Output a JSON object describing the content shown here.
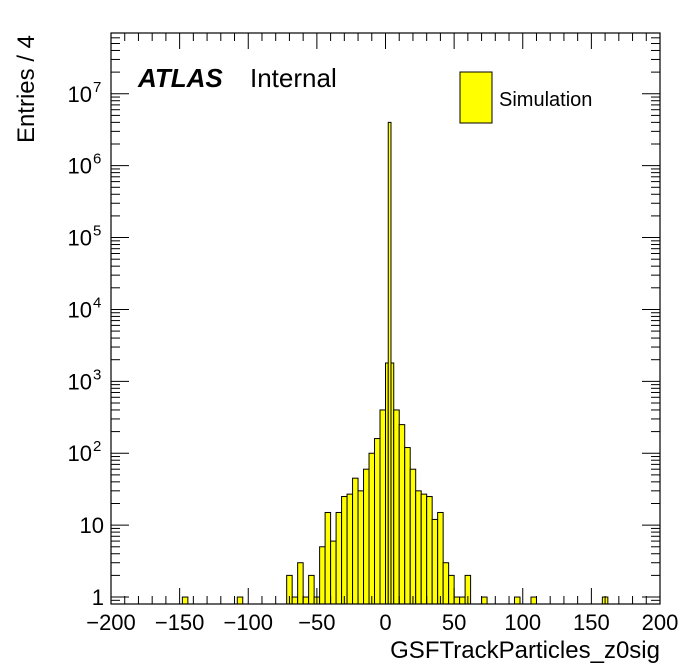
{
  "chart_data": {
    "type": "bar",
    "xlabel": "GSFTrackParticles_z0sig",
    "ylabel": "Entries / 4",
    "experiment_label": "ATLAS",
    "status_label": "Internal",
    "xlim": [
      -200,
      200
    ],
    "ylim": [
      0.8,
      70000000
    ],
    "yscale": "log",
    "bin_width": 4,
    "x_tick_values": [
      -200,
      -150,
      -100,
      -50,
      0,
      50,
      100,
      150,
      200
    ],
    "x_tick_labels": [
      "−200",
      "−150",
      "−100",
      "−50",
      "0",
      "50",
      "100",
      "150",
      "200"
    ],
    "y_ticks": [
      {
        "value": 1,
        "base": "1",
        "exp": ""
      },
      {
        "value": 10,
        "base": "10",
        "exp": ""
      },
      {
        "value": 100,
        "base": "10",
        "exp": "2"
      },
      {
        "value": 1000,
        "base": "10",
        "exp": "3"
      },
      {
        "value": 10000,
        "base": "10",
        "exp": "4"
      },
      {
        "value": 100000,
        "base": "10",
        "exp": "5"
      },
      {
        "value": 1000000,
        "base": "10",
        "exp": "6"
      },
      {
        "value": 10000000,
        "base": "10",
        "exp": "7"
      }
    ],
    "legend_position": "top-right",
    "series": [
      {
        "name": "Simulation",
        "color": "#ffff00",
        "edge_color": "#000000",
        "bins": [
          [
            -148,
            1
          ],
          [
            -108,
            1
          ],
          [
            -72,
            2
          ],
          [
            -68,
            1
          ],
          [
            -64,
            3
          ],
          [
            -60,
            1
          ],
          [
            -56,
            2
          ],
          [
            -52,
            1
          ],
          [
            -48,
            5
          ],
          [
            -44,
            15
          ],
          [
            -40,
            6
          ],
          [
            -36,
            15
          ],
          [
            -32,
            25
          ],
          [
            -28,
            27
          ],
          [
            -24,
            45
          ],
          [
            -20,
            30
          ],
          [
            -16,
            60
          ],
          [
            -12,
            100
          ],
          [
            -8,
            160
          ],
          [
            -4,
            400
          ],
          [
            0,
            1800
          ],
          [
            2,
            4000000
          ],
          [
            4,
            1800
          ],
          [
            6,
            400
          ],
          [
            10,
            250
          ],
          [
            14,
            120
          ],
          [
            18,
            60
          ],
          [
            22,
            30
          ],
          [
            26,
            27
          ],
          [
            30,
            25
          ],
          [
            34,
            12
          ],
          [
            38,
            15
          ],
          [
            42,
            3
          ],
          [
            46,
            2
          ],
          [
            50,
            1
          ],
          [
            54,
            1
          ],
          [
            58,
            2
          ],
          [
            70,
            1
          ],
          [
            94,
            1
          ],
          [
            106,
            1
          ],
          [
            158,
            1
          ]
        ]
      }
    ]
  }
}
